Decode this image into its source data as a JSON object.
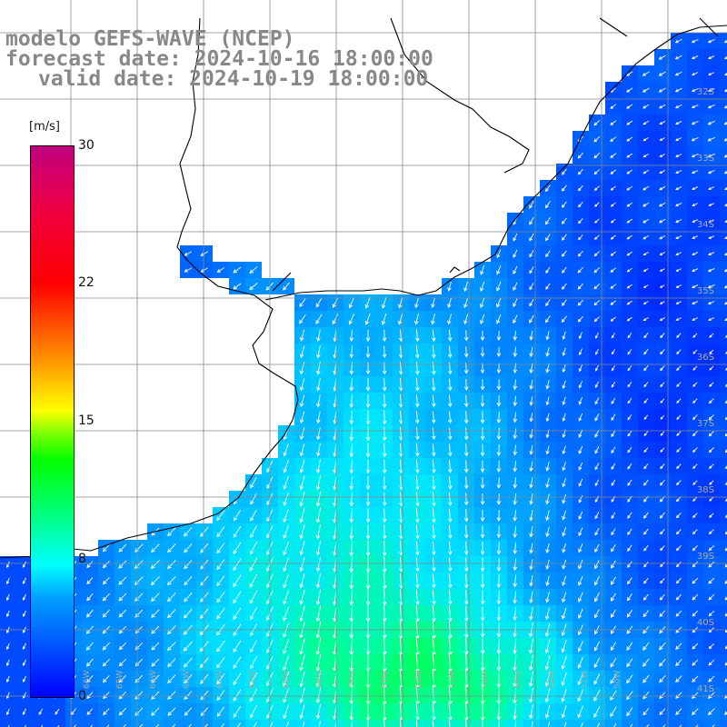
{
  "title": {
    "line1": "modelo GEFS-WAVE (NCEP)",
    "line2": "forecast date: 2024-10-16 18:00:00",
    "line3": "valid date: 2024-10-19 18:00:00"
  },
  "colorbar": {
    "unit": "[m/s]",
    "min": 0,
    "max": 30,
    "ticks": [
      "30",
      "22",
      "15",
      "8",
      "0"
    ],
    "tick_values": [
      30,
      22.5,
      15,
      7.5,
      0
    ]
  },
  "map": {
    "lon_range": [
      -70,
      -49
    ],
    "lat_range": [
      -41.5,
      -30.5
    ],
    "lat_labels": [
      "32S",
      "33S",
      "34S",
      "35S",
      "36S",
      "37S",
      "38S",
      "39S",
      "40S",
      "41S"
    ],
    "lon_labels": [
      "66W",
      "65W",
      "64W",
      "63W",
      "62W",
      "61W",
      "60W",
      "59W",
      "58W",
      "57W",
      "56W",
      "55W",
      "54W",
      "53W",
      "52W",
      "51W",
      "50W"
    ],
    "grid": true,
    "colors": {
      "land": "#ffffff",
      "coast": "#000000",
      "grid": "#888888",
      "arrow": "#ffffff"
    }
  }
}
